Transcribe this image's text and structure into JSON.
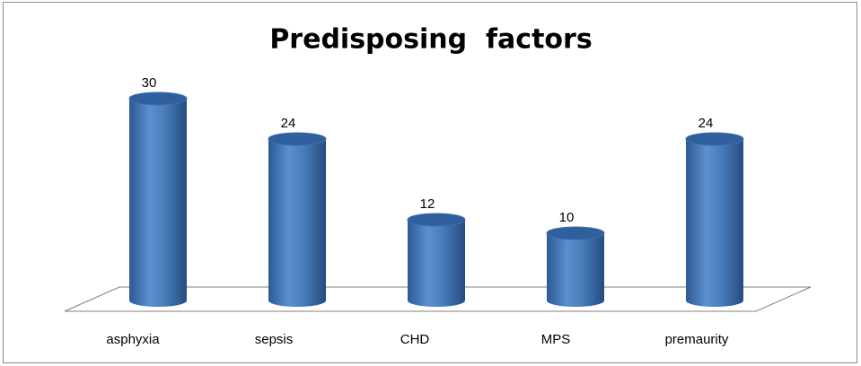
{
  "chart_data": {
    "type": "bar",
    "title": "Predisposing  factors",
    "categories": [
      "asphyxia",
      "sepsis",
      "CHD",
      "MPS",
      "premaurity"
    ],
    "values": [
      30,
      24,
      12,
      10,
      24
    ],
    "color": "#4a7ebb"
  }
}
